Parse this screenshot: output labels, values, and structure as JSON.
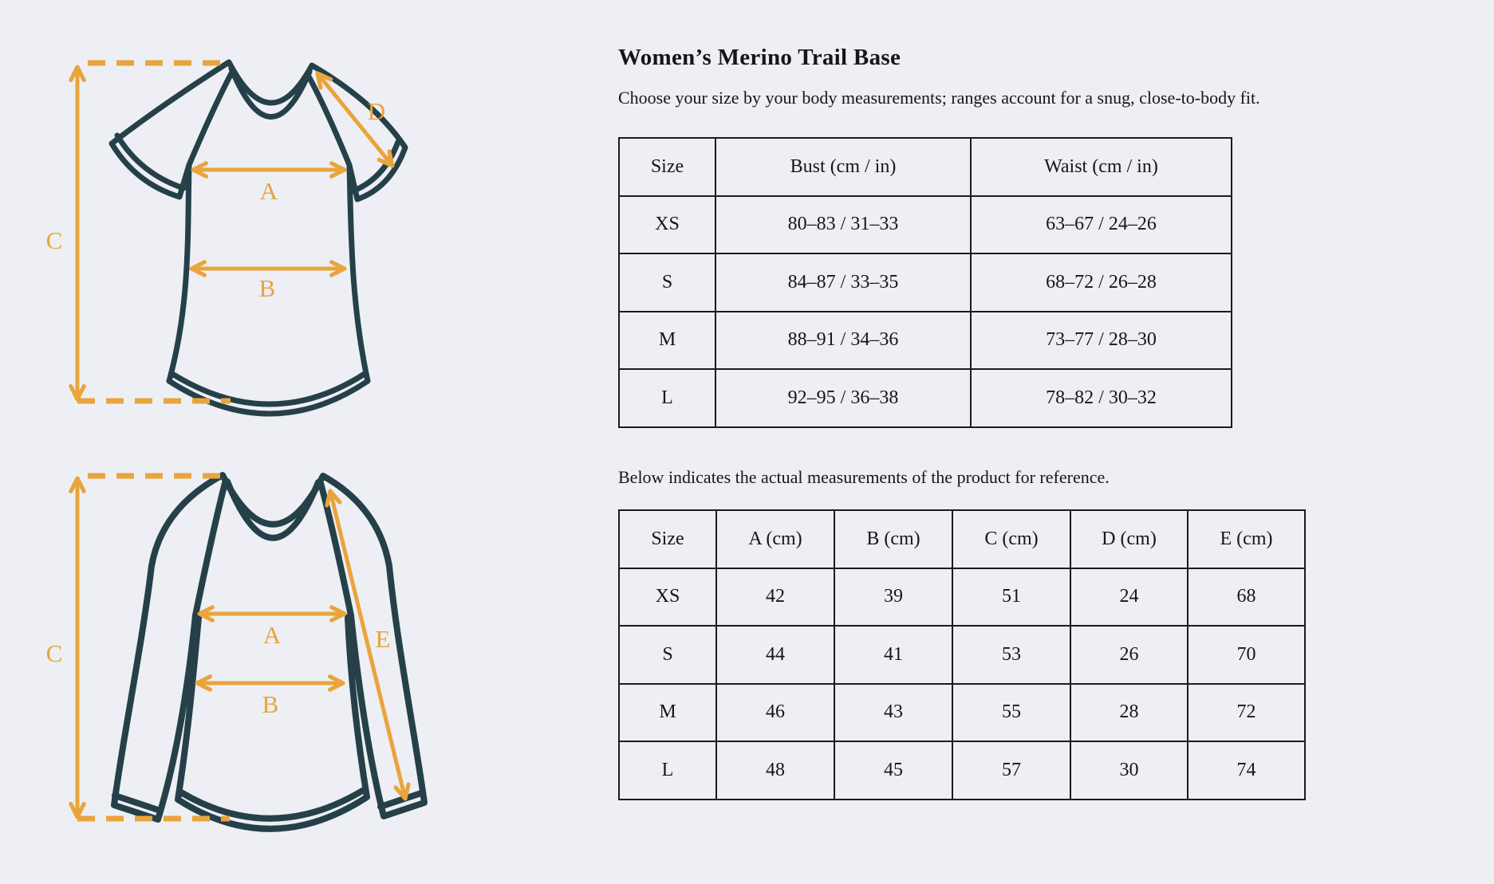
{
  "page": {
    "background": "#EDEFF4",
    "colors": {
      "accent_orange": "#E9A43C",
      "garment_outline": "#254049",
      "table_border": "#1B1B1B",
      "text": "#161616"
    }
  },
  "product": {
    "title": "Women’s Merino Trail Base",
    "intro": "Choose your size by your body measurements; ranges account for a snug, close-to-body fit.",
    "reference_note": "Below indicates the actual measurements of the product for reference."
  },
  "body_table": {
    "headers": [
      "Size",
      "Bust (cm / in)",
      "Waist (cm / in)"
    ],
    "rows": [
      [
        "XS",
        "80–83 / 31–33",
        "63–67 / 24–26"
      ],
      [
        "S",
        "84–87 / 33–35",
        "68–72 / 26–28"
      ],
      [
        "M",
        "88–91 / 34–36",
        "73–77 / 28–30"
      ],
      [
        "L",
        "92–95 / 36–38",
        "78–82 / 30–32"
      ]
    ]
  },
  "product_table": {
    "headers": [
      "Size",
      "A (cm)",
      "B (cm)",
      "C (cm)",
      "D (cm)",
      "E (cm)"
    ],
    "rows": [
      [
        "XS",
        "42",
        "39",
        "51",
        "24",
        "68"
      ],
      [
        "S",
        "44",
        "41",
        "53",
        "26",
        "70"
      ],
      [
        "M",
        "46",
        "43",
        "55",
        "28",
        "72"
      ],
      [
        "L",
        "48",
        "45",
        "57",
        "30",
        "74"
      ]
    ]
  },
  "diagrams": {
    "short_sleeve": {
      "garment": "short-sleeve tee",
      "labels": [
        "A",
        "B",
        "C",
        "D"
      ]
    },
    "long_sleeve": {
      "garment": "long-sleeve base layer",
      "labels": [
        "A",
        "B",
        "C",
        "E"
      ]
    }
  }
}
